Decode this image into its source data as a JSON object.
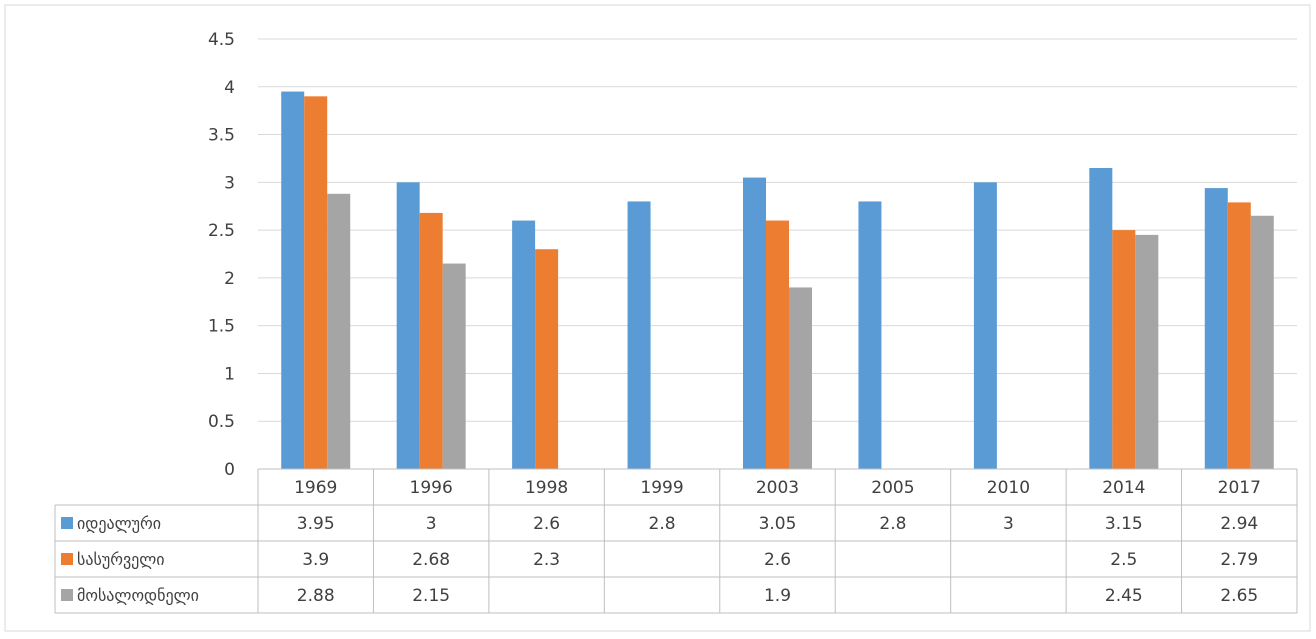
{
  "chart_data": {
    "type": "bar",
    "title": "",
    "xlabel": "",
    "ylabel": "",
    "categories": [
      "1969",
      "1996",
      "1998",
      "1999",
      "2003",
      "2005",
      "2010",
      "2014",
      "2017"
    ],
    "ylim": [
      0,
      4.5
    ],
    "yticks": [
      "0",
      "0.5",
      "1",
      "1.5",
      "2",
      "2.5",
      "3",
      "3.5",
      "4",
      "4.5"
    ],
    "grid": true,
    "legend": "data-table",
    "series": [
      {
        "name": "იდეალური",
        "color": "#5b9bd5",
        "values": [
          3.95,
          3,
          2.6,
          2.8,
          3.05,
          2.8,
          3,
          3.15,
          2.94
        ],
        "labels": [
          "3.95",
          "3",
          "2.6",
          "2.8",
          "3.05",
          "2.8",
          "3",
          "3.15",
          "2.94"
        ]
      },
      {
        "name": "სასურველი",
        "color": "#ed7d31",
        "values": [
          3.9,
          2.68,
          2.3,
          null,
          2.6,
          null,
          null,
          2.5,
          2.79
        ],
        "labels": [
          "3.9",
          "2.68",
          "2.3",
          "",
          "2.6",
          "",
          "",
          "2.5",
          "2.79"
        ]
      },
      {
        "name": "მოსალოდნელი",
        "color": "#a5a5a5",
        "values": [
          2.88,
          2.15,
          null,
          null,
          1.9,
          null,
          null,
          2.45,
          2.65
        ],
        "labels": [
          "2.88",
          "2.15",
          "",
          "",
          "1.9",
          "",
          "",
          "2.45",
          "2.65"
        ]
      }
    ]
  }
}
